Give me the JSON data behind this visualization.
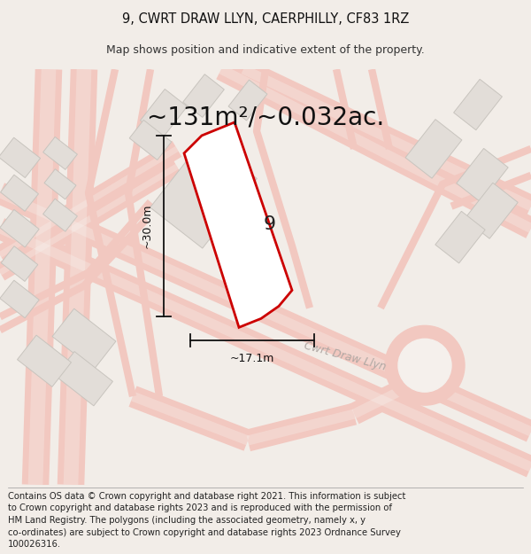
{
  "title_line1": "9, CWRT DRAW LLYN, CAERPHILLY, CF83 1RZ",
  "title_line2": "Map shows position and indicative extent of the property.",
  "area_text": "~131m²/~0.032ac.",
  "label_number": "9",
  "dim_height": "~30.0m",
  "dim_width": "~17.1m",
  "footer_lines": [
    "Contains OS data © Crown copyright and database right 2021. This information is subject",
    "to Crown copyright and database rights 2023 and is reproduced with the permission of",
    "HM Land Registry. The polygons (including the associated geometry, namely x, y",
    "co-ordinates) are subject to Crown copyright and database rights 2023 Ordnance Survey",
    "100026316."
  ],
  "bg_color": "#f2ede8",
  "map_bg": "#f5f0ec",
  "road_color": "#f2c8c0",
  "road_fill_color": "#f8f4f0",
  "building_color": "#e2ddd8",
  "building_edge": "#c8c4be",
  "highlight_color": "#cc0000",
  "road_label": "Cwrt Draw Llyn",
  "title_fontsize": 10.5,
  "subtitle_fontsize": 9,
  "area_fontsize": 20,
  "footer_fontsize": 7.2,
  "map_region": [
    0,
    0.125,
    1,
    0.75
  ],
  "title_region": [
    0,
    0.875,
    1,
    0.125
  ],
  "footer_region": [
    0,
    0,
    1,
    0.125
  ]
}
